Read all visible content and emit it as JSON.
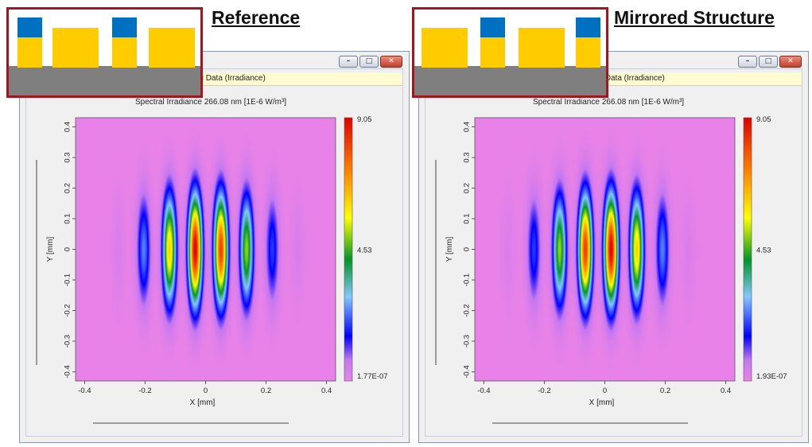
{
  "panels": [
    {
      "heading": "Reference",
      "tab_text": "c Data (Irradiance)",
      "plot_title": "Spectral Irradiance 266.08 nm  [1E-6 W/m³]",
      "colorbar": {
        "max": "9.05",
        "mid": "4.53",
        "min": "1.77E-07"
      }
    },
    {
      "heading": "Mirrored Structure",
      "tab_text": "c Data (Irradiance)",
      "plot_title": "Spectral Irradiance 266.08 nm  [1E-6 W/m³]",
      "colorbar": {
        "max": "9.05",
        "mid": "4.53",
        "min": "1.93E-07"
      }
    }
  ],
  "window_buttons": {
    "minimize": "–",
    "restore": "□",
    "close": "✕"
  },
  "colors": {
    "highlight_box": "#a4161f",
    "pillar_yellow": "#ffcc00",
    "pillar_blue": "#0070c0",
    "substrate": "#7f7f7f"
  },
  "chart_data": [
    {
      "type": "heatmap",
      "title": "Spectral Irradiance 266.08 nm  [1E-6 W/m³]",
      "xlabel": "X [mm]",
      "ylabel": "Y [mm]",
      "xlim": [
        -0.43,
        0.43
      ],
      "ylim": [
        -0.43,
        0.43
      ],
      "x_ticks": [
        "-0.4",
        "-0.2",
        "0",
        "0.2",
        "0.4"
      ],
      "y_ticks": [
        "0.4",
        "0.3",
        "0.2",
        "0.1",
        "0",
        "-0.1",
        "-0.2",
        "-0.3",
        "-0.4"
      ],
      "colorscale_range": [
        1.77e-07,
        9.05
      ],
      "fringes_x_mm": [
        -0.29,
        -0.205,
        -0.12,
        -0.035,
        0.05,
        0.135,
        0.22,
        0.305
      ],
      "fringes_peak": [
        0.3,
        2.4,
        6.2,
        9.05,
        8.2,
        5.0,
        1.9,
        0.3
      ]
    },
    {
      "type": "heatmap",
      "title": "Spectral Irradiance 266.08 nm  [1E-6 W/m³]",
      "xlabel": "X [mm]",
      "ylabel": "Y [mm]",
      "xlim": [
        -0.43,
        0.43
      ],
      "ylim": [
        -0.43,
        0.43
      ],
      "x_ticks": [
        "-0.4",
        "-0.2",
        "0",
        "0.2",
        "0.4"
      ],
      "y_ticks": [
        "0.4",
        "0.3",
        "0.2",
        "0.1",
        "0",
        "-0.1",
        "-0.2",
        "-0.3",
        "-0.4"
      ],
      "colorscale_range": [
        1.93e-07,
        9.05
      ],
      "fringes_x_mm": [
        -0.32,
        -0.235,
        -0.15,
        -0.065,
        0.02,
        0.105,
        0.19,
        0.275
      ],
      "fringes_peak": [
        0.3,
        1.9,
        5.0,
        8.2,
        9.05,
        6.2,
        2.4,
        0.3
      ]
    }
  ]
}
